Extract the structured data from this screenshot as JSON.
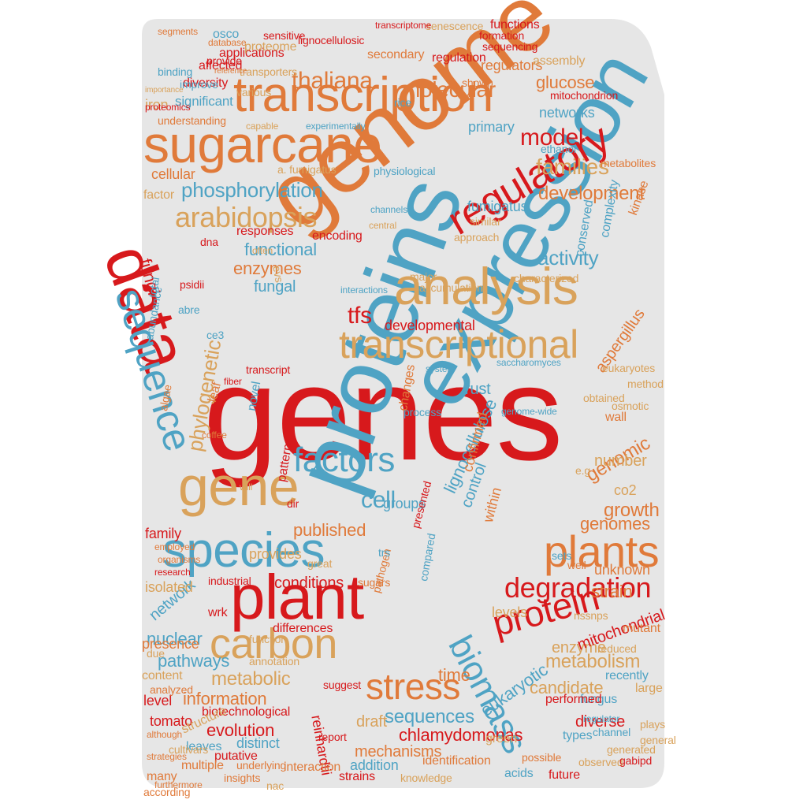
{
  "colors": {
    "shape_fill": "#e6e6e6",
    "red": "#d7191c",
    "blue": "#4fa3c4",
    "orange": "#e07a3a",
    "tan": "#d9a25b"
  },
  "words": [
    {
      "text": "genes",
      "color": "red"
    },
    {
      "text": "genome",
      "color": "orange"
    },
    {
      "text": "proteins",
      "color": "blue"
    },
    {
      "text": "expression",
      "color": "blue"
    },
    {
      "text": "sugarcane",
      "color": "orange"
    },
    {
      "text": "transcription",
      "color": "orange"
    },
    {
      "text": "data",
      "color": "red"
    },
    {
      "text": "analysis",
      "color": "tan"
    },
    {
      "text": "transcriptional",
      "color": "tan"
    },
    {
      "text": "plant",
      "color": "red"
    },
    {
      "text": "species",
      "color": "blue"
    },
    {
      "text": "gene",
      "color": "tan"
    },
    {
      "text": "regulatory",
      "color": "red"
    },
    {
      "text": "sequence",
      "color": "blue"
    },
    {
      "text": "plants",
      "color": "orange"
    },
    {
      "text": "stress",
      "color": "orange"
    },
    {
      "text": "factors",
      "color": "blue"
    },
    {
      "text": "carbon",
      "color": "tan"
    },
    {
      "text": "protein",
      "color": "red"
    },
    {
      "text": "degradation",
      "color": "red"
    },
    {
      "text": "biomass",
      "color": "blue"
    },
    {
      "text": "arabidopsis",
      "color": "tan"
    },
    {
      "text": "thaliana",
      "color": "orange"
    },
    {
      "text": "phosphorylation",
      "color": "blue"
    },
    {
      "text": "model",
      "color": "red"
    },
    {
      "text": "families",
      "color": "tan"
    },
    {
      "text": "molecular",
      "color": "orange"
    },
    {
      "text": "development",
      "color": "orange"
    },
    {
      "text": "activity",
      "color": "blue"
    },
    {
      "text": "metabolism",
      "color": "tan"
    },
    {
      "text": "metabolic",
      "color": "tan"
    },
    {
      "text": "sequences",
      "color": "blue"
    },
    {
      "text": "chlamydomonas",
      "color": "red"
    },
    {
      "text": "information",
      "color": "orange"
    },
    {
      "text": "cell",
      "color": "blue"
    },
    {
      "text": "tfs",
      "color": "red"
    },
    {
      "text": "genomic",
      "color": "orange"
    },
    {
      "text": "growth",
      "color": "orange"
    },
    {
      "text": "genomes",
      "color": "orange"
    },
    {
      "text": "strain",
      "color": "orange"
    },
    {
      "text": "enzymes",
      "color": "orange"
    },
    {
      "text": "functional",
      "color": "blue"
    },
    {
      "text": "fungal",
      "color": "blue"
    },
    {
      "text": "developmental",
      "color": "red"
    },
    {
      "text": "phylogenetic",
      "color": "tan"
    },
    {
      "text": "lignocellulose",
      "color": "blue"
    },
    {
      "text": "mechanisms",
      "color": "orange"
    },
    {
      "text": "eukaryotic",
      "color": "blue"
    },
    {
      "text": "candidate",
      "color": "tan"
    },
    {
      "text": "pathways",
      "color": "blue"
    },
    {
      "text": "nuclear",
      "color": "blue"
    },
    {
      "text": "evolution",
      "color": "red"
    },
    {
      "text": "enzyme",
      "color": "tan"
    },
    {
      "text": "network",
      "color": "blue"
    },
    {
      "text": "mitochondrial",
      "color": "red"
    },
    {
      "text": "published",
      "color": "orange"
    },
    {
      "text": "time",
      "color": "orange"
    },
    {
      "text": "draft",
      "color": "tan"
    },
    {
      "text": "levels",
      "color": "tan"
    },
    {
      "text": "conditions",
      "color": "red"
    },
    {
      "text": "diverse",
      "color": "red"
    },
    {
      "text": "fumigatus",
      "color": "blue"
    },
    {
      "text": "aspergillus",
      "color": "orange"
    },
    {
      "text": "glucose",
      "color": "orange"
    },
    {
      "text": "networks",
      "color": "blue"
    },
    {
      "text": "primary",
      "color": "blue"
    },
    {
      "text": "iron",
      "color": "tan"
    },
    {
      "text": "significant",
      "color": "blue"
    },
    {
      "text": "cellular",
      "color": "orange"
    },
    {
      "text": "factor",
      "color": "tan"
    },
    {
      "text": "regulators",
      "color": "orange"
    },
    {
      "text": "secondary",
      "color": "orange"
    },
    {
      "text": "applications",
      "color": "red"
    },
    {
      "text": "proteome",
      "color": "tan"
    },
    {
      "text": "regulation",
      "color": "red"
    },
    {
      "text": "assembly",
      "color": "tan"
    },
    {
      "text": "lignocellulosic",
      "color": "red"
    },
    {
      "text": "sequencing",
      "color": "red"
    },
    {
      "text": "formation",
      "color": "red"
    },
    {
      "text": "functions",
      "color": "red"
    },
    {
      "text": "affected",
      "color": "red"
    },
    {
      "text": "diversity",
      "color": "red"
    },
    {
      "text": "osco",
      "color": "blue"
    },
    {
      "text": "sensitive",
      "color": "red"
    },
    {
      "text": "understanding",
      "color": "orange"
    },
    {
      "text": "rust",
      "color": "blue"
    },
    {
      "text": "number",
      "color": "tan"
    },
    {
      "text": "co2",
      "color": "tan"
    },
    {
      "text": "groups",
      "color": "blue"
    },
    {
      "text": "fungi",
      "color": "red"
    },
    {
      "text": "family",
      "color": "red"
    },
    {
      "text": "provides",
      "color": "tan"
    },
    {
      "text": "isolated",
      "color": "tan"
    },
    {
      "text": "industrial",
      "color": "red"
    },
    {
      "text": "presence",
      "color": "orange"
    },
    {
      "text": "annotation",
      "color": "tan"
    },
    {
      "text": "wall",
      "color": "orange"
    },
    {
      "text": "content",
      "color": "tan"
    },
    {
      "text": "level",
      "color": "red"
    },
    {
      "text": "tomato",
      "color": "red"
    },
    {
      "text": "biotechnological",
      "color": "red"
    },
    {
      "text": "structure",
      "color": "tan"
    },
    {
      "text": "distinct",
      "color": "blue"
    },
    {
      "text": "reinhardtii",
      "color": "red"
    },
    {
      "text": "addition",
      "color": "blue"
    },
    {
      "text": "identification",
      "color": "orange"
    },
    {
      "text": "green",
      "color": "tan"
    },
    {
      "text": "types",
      "color": "blue"
    },
    {
      "text": "acids",
      "color": "blue"
    },
    {
      "text": "fungus",
      "color": "blue"
    },
    {
      "text": "strains",
      "color": "red"
    },
    {
      "text": "possible",
      "color": "orange"
    },
    {
      "text": "future",
      "color": "red"
    },
    {
      "text": "leaves",
      "color": "blue"
    },
    {
      "text": "putative",
      "color": "red"
    },
    {
      "text": "multiple",
      "color": "orange"
    },
    {
      "text": "interaction",
      "color": "orange"
    },
    {
      "text": "knowledge",
      "color": "tan"
    },
    {
      "text": "mutant",
      "color": "orange"
    },
    {
      "text": "recently",
      "color": "blue"
    },
    {
      "text": "large",
      "color": "tan"
    },
    {
      "text": "performed",
      "color": "red"
    },
    {
      "text": "control",
      "color": "blue"
    },
    {
      "text": "confirmed",
      "color": "orange"
    },
    {
      "text": "within",
      "color": "orange"
    },
    {
      "text": "changes",
      "color": "orange"
    },
    {
      "text": "novel",
      "color": "blue"
    },
    {
      "text": "leaf",
      "color": "orange"
    },
    {
      "text": "patterns",
      "color": "red"
    },
    {
      "text": "differences",
      "color": "red"
    },
    {
      "text": "responses",
      "color": "red"
    },
    {
      "text": "encoding",
      "color": "red"
    },
    {
      "text": "approach",
      "color": "tan"
    },
    {
      "text": "complexity",
      "color": "blue"
    },
    {
      "text": "kinase",
      "color": "orange"
    },
    {
      "text": "conserved",
      "color": "blue"
    },
    {
      "text": "similar",
      "color": "tan"
    },
    {
      "text": "ethanol",
      "color": "blue"
    },
    {
      "text": "physiological",
      "color": "blue"
    },
    {
      "text": "a. fumigatus",
      "color": "tan"
    },
    {
      "text": "improve",
      "color": "blue"
    },
    {
      "text": "various",
      "color": "tan"
    },
    {
      "text": "transporters",
      "color": "tan"
    },
    {
      "text": "shown",
      "color": "orange"
    },
    {
      "text": "rice",
      "color": "blue"
    },
    {
      "text": "mitochondrion",
      "color": "red"
    },
    {
      "text": "capable",
      "color": "tan"
    },
    {
      "text": "experimentally",
      "color": "blue"
    },
    {
      "text": "process",
      "color": "blue"
    },
    {
      "text": "system",
      "color": "blue"
    },
    {
      "text": "method",
      "color": "tan"
    },
    {
      "text": "metabolites",
      "color": "orange"
    },
    {
      "text": "channels",
      "color": "blue"
    },
    {
      "text": "central",
      "color": "tan"
    },
    {
      "text": "major",
      "color": "tan"
    },
    {
      "text": "accumulation",
      "color": "tan"
    },
    {
      "text": "characterized",
      "color": "tan"
    },
    {
      "text": "algae",
      "color": "orange"
    },
    {
      "text": "sugars",
      "color": "orange"
    },
    {
      "text": "pathogen",
      "color": "orange"
    },
    {
      "text": "compared",
      "color": "blue"
    },
    {
      "text": "presented",
      "color": "red"
    },
    {
      "text": "transcript",
      "color": "red"
    },
    {
      "text": "dna",
      "color": "red"
    },
    {
      "text": "often",
      "color": "tan"
    },
    {
      "text": "abundance",
      "color": "blue"
    },
    {
      "text": "total",
      "color": "blue"
    },
    {
      "text": "interactions",
      "color": "blue"
    },
    {
      "text": "provide",
      "color": "red"
    },
    {
      "text": "database",
      "color": "orange"
    },
    {
      "text": "binding",
      "color": "blue"
    },
    {
      "text": "segments",
      "color": "orange"
    },
    {
      "text": "senescence",
      "color": "tan"
    },
    {
      "text": "transcriptome",
      "color": "red"
    },
    {
      "text": "importance",
      "color": "tan"
    },
    {
      "text": "proteomics",
      "color": "red"
    },
    {
      "text": "reference",
      "color": "orange"
    },
    {
      "text": "genome-wide",
      "color": "blue"
    },
    {
      "text": "coffee",
      "color": "orange"
    },
    {
      "text": "will",
      "color": "tan"
    },
    {
      "text": "organisms",
      "color": "orange"
    },
    {
      "text": "research",
      "color": "red"
    },
    {
      "text": "wrk",
      "color": "red"
    },
    {
      "text": "due",
      "color": "tan"
    },
    {
      "text": "employed",
      "color": "orange"
    },
    {
      "text": "great",
      "color": "tan"
    },
    {
      "text": "report",
      "color": "red"
    },
    {
      "text": "suggest",
      "color": "red"
    },
    {
      "text": "analyzed",
      "color": "orange"
    },
    {
      "text": "many",
      "color": "orange"
    },
    {
      "text": "according",
      "color": "orange"
    },
    {
      "text": "insights",
      "color": "orange"
    },
    {
      "text": "underlying",
      "color": "orange"
    },
    {
      "text": "cultivars",
      "color": "tan"
    },
    {
      "text": "strategies",
      "color": "orange"
    },
    {
      "text": "although",
      "color": "orange"
    },
    {
      "text": "observed",
      "color": "tan"
    },
    {
      "text": "gabipd",
      "color": "red"
    },
    {
      "text": "generated",
      "color": "tan"
    },
    {
      "text": "channel",
      "color": "blue"
    },
    {
      "text": "regulator",
      "color": "blue"
    },
    {
      "text": "plays",
      "color": "tan"
    },
    {
      "text": "general",
      "color": "tan"
    },
    {
      "text": "reduced",
      "color": "tan"
    },
    {
      "text": "unknown",
      "color": "orange"
    },
    {
      "text": "sets",
      "color": "blue"
    },
    {
      "text": "well",
      "color": "orange"
    },
    {
      "text": "function",
      "color": "tan"
    },
    {
      "text": "obtained",
      "color": "tan"
    },
    {
      "text": "osmotic",
      "color": "tan"
    },
    {
      "text": "eukaryotes",
      "color": "tan"
    },
    {
      "text": "saccharomyces",
      "color": "blue"
    },
    {
      "text": "nssnps",
      "color": "tan"
    },
    {
      "text": "e.g",
      "color": "tan"
    },
    {
      "text": "dir",
      "color": "red"
    },
    {
      "text": "trs",
      "color": "blue"
    },
    {
      "text": "abre",
      "color": "blue"
    },
    {
      "text": "psidii",
      "color": "red"
    },
    {
      "text": "ce3",
      "color": "blue"
    },
    {
      "text": "evs",
      "color": "tan"
    },
    {
      "text": "fiber",
      "color": "red"
    },
    {
      "text": "nac",
      "color": "tan"
    },
    {
      "text": "furthermore",
      "color": "orange"
    }
  ]
}
